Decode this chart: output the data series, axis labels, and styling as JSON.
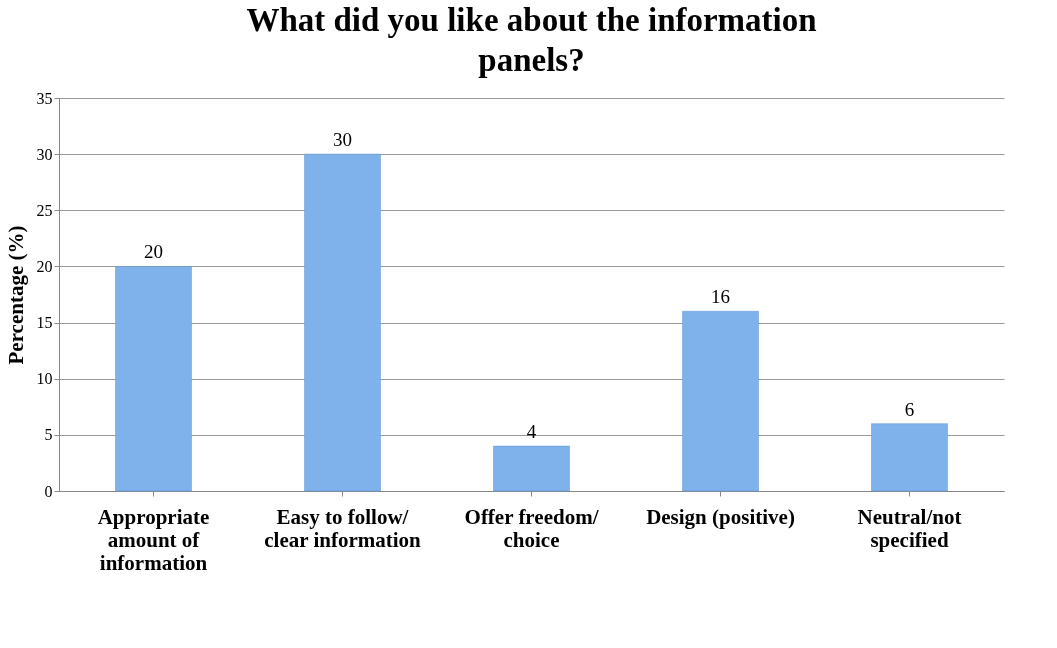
{
  "chart_data": {
    "type": "bar",
    "title": "What did you like about the information panels?",
    "ylabel": "Percentage (%)",
    "categories": [
      "Appropriate amount of information",
      "Easy to follow/ clear information",
      "Offer freedom/ choice",
      "Design (positive)",
      "Neutral/not specified"
    ],
    "values": [
      20,
      30,
      4,
      16,
      6
    ],
    "color": "#7fb1ea",
    "ylim": [
      0,
      35
    ],
    "yticks": [
      0,
      5,
      10,
      15,
      20,
      25,
      30,
      35
    ],
    "grid": "y",
    "data_labels": true
  }
}
